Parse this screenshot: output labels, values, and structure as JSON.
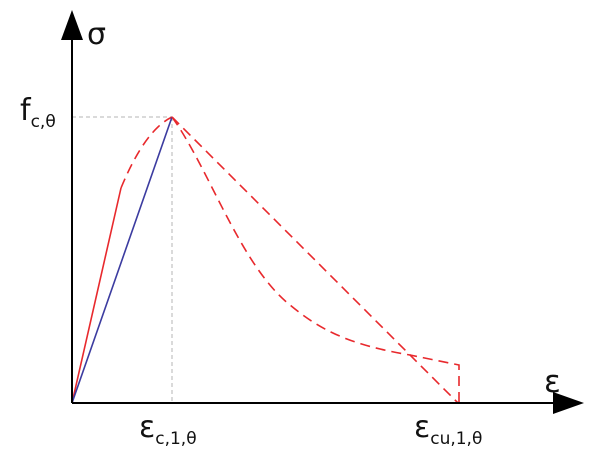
{
  "diagram": {
    "y_axis_symbol": "σ",
    "x_axis_symbol": "ε",
    "y_marker": {
      "main": "f",
      "sub": "c,θ"
    },
    "x_marker_peak": {
      "main": "ε",
      "sub": "c,1,θ"
    },
    "x_marker_ultimate": {
      "main": "ε",
      "sub": "cu,1,θ"
    }
  },
  "colors": {
    "axes": "#000000",
    "solid_red_branch": "#e8292d",
    "linear_blue_branch": "#3c3ca0",
    "dashed_curves": "#e8292d",
    "guide_lines": "#b4b4b4"
  }
}
